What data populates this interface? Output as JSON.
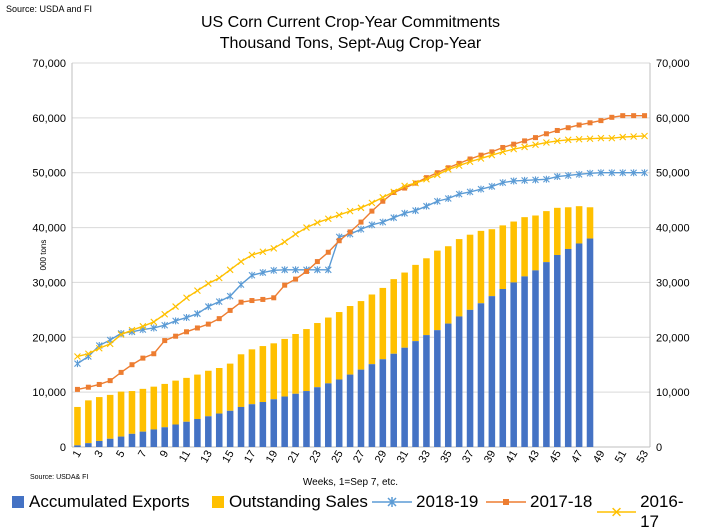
{
  "source_top": "Source: USDA and  FI",
  "title_line1": "US Corn Current Crop-Year Commitments",
  "title_line2": "Thousand Tons, Sept-Aug Crop-Year",
  "source_bottom": "Source: USDA& FI",
  "chart_data": {
    "type": "bar",
    "stacked": true,
    "title": "US Corn Current Crop-Year Commitments",
    "subtitle": "Thousand Tons, Sept-Aug Crop-Year",
    "xlabel": "Weeks, 1=Sep 7, etc.",
    "ylabel": "000 tons",
    "ylim": [
      0,
      70000
    ],
    "y_ticks": [
      "0",
      "10,000",
      "20,000",
      "30,000",
      "40,000",
      "50,000",
      "60,000",
      "70,000"
    ],
    "x_tick_labels": [
      "1",
      "3",
      "5",
      "7",
      "9",
      "11",
      "13",
      "15",
      "17",
      "19",
      "21",
      "23",
      "25",
      "27",
      "29",
      "31",
      "33",
      "35",
      "37",
      "39",
      "41",
      "43",
      "45",
      "47",
      "49",
      "51",
      "53"
    ],
    "secondary_y": true,
    "grid": true,
    "legend_position": "bottom",
    "x": [
      1,
      2,
      3,
      4,
      5,
      6,
      7,
      8,
      9,
      10,
      11,
      12,
      13,
      14,
      15,
      16,
      17,
      18,
      19,
      20,
      21,
      22,
      23,
      24,
      25,
      26,
      27,
      28,
      29,
      30,
      31,
      32,
      33,
      34,
      35,
      36,
      37,
      38,
      39,
      40,
      41,
      42,
      43,
      44,
      45,
      46,
      47,
      48,
      49,
      50,
      51,
      52,
      53
    ],
    "bar_series": [
      {
        "name": "Accumulated Exports",
        "color": "#4472C4",
        "values": [
          300,
          700,
          1100,
          1500,
          1900,
          2400,
          2800,
          3200,
          3600,
          4100,
          4600,
          5100,
          5600,
          6100,
          6600,
          7300,
          7800,
          8200,
          8700,
          9200,
          9700,
          10200,
          10900,
          11600,
          12300,
          13200,
          14100,
          15100,
          16000,
          17000,
          18100,
          19300,
          20400,
          21300,
          22500,
          23800,
          25000,
          26200,
          27500,
          28800,
          30000,
          31100,
          32200,
          33700,
          35000,
          36100,
          37100,
          38000
        ]
      },
      {
        "name": "Outstanding Sales",
        "color": "#FFC000",
        "values": [
          7000,
          7800,
          8000,
          8000,
          8200,
          7800,
          7800,
          7800,
          7900,
          8000,
          8000,
          8100,
          8300,
          8300,
          8600,
          9600,
          10000,
          10200,
          10200,
          10500,
          10900,
          11300,
          11700,
          12000,
          12300,
          12500,
          12500,
          12700,
          13000,
          13600,
          13700,
          13900,
          14000,
          14500,
          14100,
          14100,
          13700,
          13200,
          12200,
          11600,
          11100,
          10800,
          10000,
          9300,
          8600,
          7600,
          6800,
          5700
        ]
      }
    ],
    "line_series": [
      {
        "name": "2018-19",
        "color": "#5B9BD5",
        "marker": "star",
        "values": [
          15200,
          16500,
          18500,
          19500,
          20700,
          21000,
          21400,
          21700,
          22200,
          23000,
          23600,
          24300,
          25600,
          26500,
          27500,
          29600,
          31300,
          31800,
          32200,
          32300,
          32300,
          32300,
          32300,
          32300,
          38300,
          38800,
          39700,
          40500,
          41000,
          41800,
          42600,
          43100,
          43900,
          44800,
          45300,
          46100,
          46500,
          47000,
          47500,
          48200,
          48500,
          48600,
          48700,
          48800,
          49300,
          49500,
          49700,
          49900,
          50000,
          50000,
          50000,
          50000,
          50000
        ]
      },
      {
        "name": "2017-18",
        "color": "#ED7D31",
        "marker": "square",
        "values": [
          10500,
          10900,
          11400,
          12100,
          13600,
          15000,
          16200,
          17000,
          19400,
          20200,
          21000,
          21700,
          22400,
          23400,
          24900,
          26400,
          26700,
          26900,
          27200,
          29500,
          30600,
          32000,
          33800,
          35500,
          37600,
          39200,
          41000,
          43000,
          44800,
          46400,
          47200,
          48100,
          49100,
          50000,
          50900,
          51700,
          52500,
          53200,
          53800,
          54600,
          55200,
          55800,
          56400,
          57100,
          57700,
          58200,
          58700,
          59100,
          59500,
          60100,
          60400,
          60400,
          60400
        ]
      },
      {
        "name": "2016-17",
        "color": "#FFC000",
        "marker": "x",
        "values": [
          16500,
          17000,
          18000,
          18800,
          20500,
          21300,
          22000,
          22800,
          24200,
          25600,
          27200,
          28500,
          29800,
          30800,
          32300,
          33800,
          35000,
          35600,
          36200,
          37400,
          38800,
          40000,
          40900,
          41600,
          42300,
          43000,
          43600,
          44500,
          45500,
          46500,
          47600,
          48100,
          48800,
          49600,
          50600,
          51300,
          52000,
          52600,
          53200,
          53800,
          54300,
          54700,
          55100,
          55500,
          55800,
          56000,
          56100,
          56200,
          56300,
          56300,
          56500,
          56600,
          56700
        ]
      }
    ],
    "legend": [
      "Accumulated Exports",
      "Outstanding Sales",
      "2018-19",
      "2017-18",
      "2016-17"
    ]
  }
}
